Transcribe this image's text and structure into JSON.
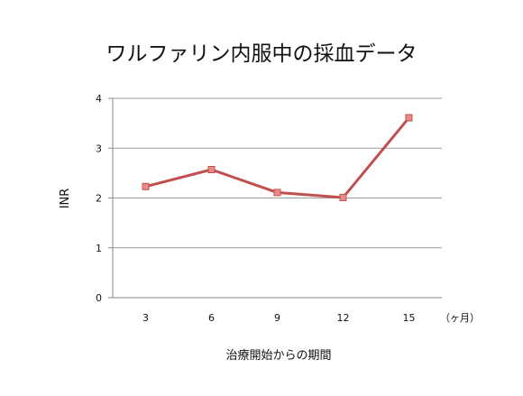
{
  "chart_data": {
    "type": "line",
    "title": "ワルファリン内服中の採血データ",
    "xlabel": "治療開始からの期間",
    "ylabel": "INR",
    "x_unit": "（ヶ月）",
    "categories": [
      "3",
      "6",
      "9",
      "12",
      "15"
    ],
    "series": [
      {
        "values": [
          2.23,
          2.57,
          2.11,
          2.01,
          3.61
        ]
      }
    ],
    "ylim": [
      0,
      4
    ],
    "yticks": [
      0,
      1,
      2,
      3,
      4
    ],
    "grid": true,
    "legend": "none",
    "colors": {
      "line": "#c0504d",
      "marker_fill": "#e88a87",
      "marker_stroke": "#c0504d",
      "grid": "#9a9a9a",
      "axis": "#8a8a8a"
    }
  }
}
